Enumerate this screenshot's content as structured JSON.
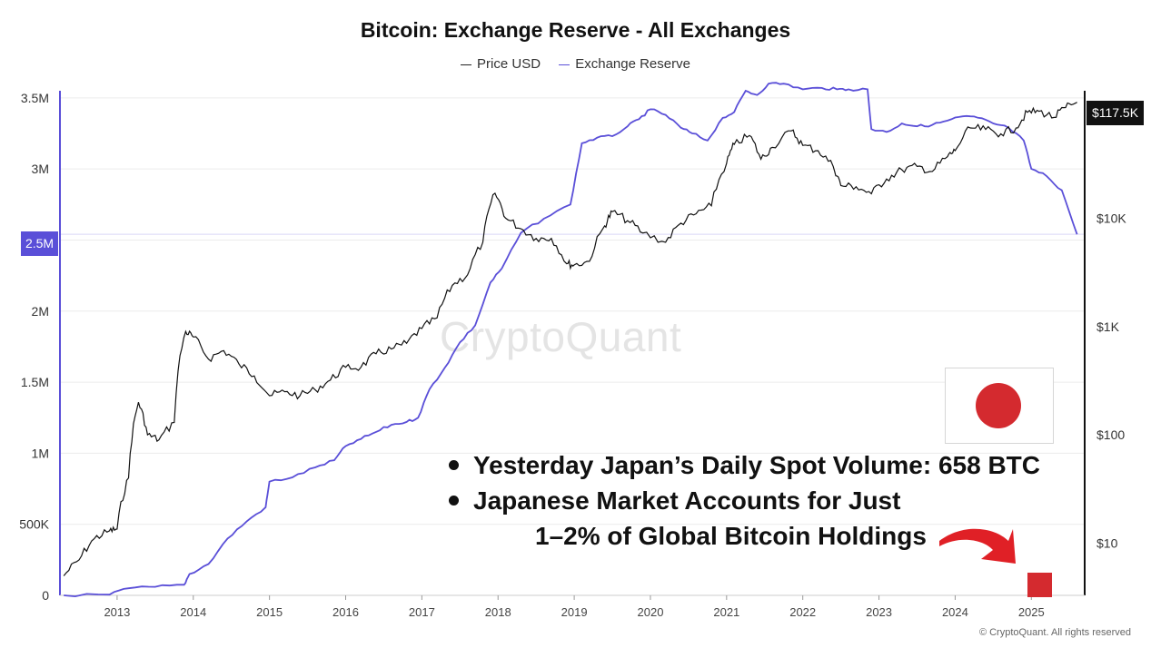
{
  "title": "Bitcoin: Exchange Reserve - All Exchanges",
  "legend": {
    "price_label": "Price USD",
    "reserve_label": "Exchange Reserve"
  },
  "watermark": "CryptoQuant",
  "copyright": "© CryptoQuant. All rights reserved",
  "badges": {
    "reserve_current": "2.5M",
    "price_current": "$117.5K"
  },
  "annotations": {
    "line1": "Yesterday Japan’s Daily Spot Volume: 658 BTC",
    "line2": "Japanese Market Accounts for Just",
    "line3": "1–2% of Global Bitcoin Holdings"
  },
  "colors": {
    "reserve": "#5a4fd8",
    "price": "#111111",
    "flag_red": "#d42a2f",
    "arrow_red": "#e02026"
  },
  "chart_data": {
    "type": "line",
    "title": "Bitcoin: Exchange Reserve - All Exchanges",
    "left_axis": {
      "ticks": [
        0,
        500000,
        1000000,
        1500000,
        2000000,
        2500000,
        3000000,
        3500000
      ],
      "tick_labels": [
        "0",
        "500K",
        "1M",
        "1.5M",
        "2M",
        "2.5M",
        "3M",
        "3.5M"
      ],
      "range": [
        0,
        3550000
      ]
    },
    "right_axis": {
      "scale": "log",
      "ticks": [
        10,
        100,
        1000,
        10000
      ],
      "tick_labels": [
        "$10",
        "$100",
        "$1K",
        "$10K"
      ],
      "range": [
        3.3,
        150000
      ]
    },
    "x_axis": {
      "tick_labels": [
        "2013",
        "2014",
        "2015",
        "2016",
        "2017",
        "2018",
        "2019",
        "2020",
        "2021",
        "2022",
        "2023",
        "2024",
        "2025"
      ],
      "range": [
        2012.25,
        2025.7
      ]
    },
    "grid": {
      "horizontal": true,
      "vertical": false
    },
    "legend_position": "top-center",
    "series": [
      {
        "name": "Price USD",
        "axis": "right",
        "color": "#111111",
        "points": [
          [
            2012.3,
            5.0
          ],
          [
            2012.5,
            7.0
          ],
          [
            2012.7,
            11.0
          ],
          [
            2012.9,
            13.0
          ],
          [
            2013.0,
            13.5
          ],
          [
            2013.15,
            40
          ],
          [
            2013.28,
            200
          ],
          [
            2013.4,
            100
          ],
          [
            2013.55,
            90
          ],
          [
            2013.75,
            130
          ],
          [
            2013.9,
            900
          ],
          [
            2014.0,
            800
          ],
          [
            2014.2,
            500
          ],
          [
            2014.4,
            600
          ],
          [
            2014.6,
            450
          ],
          [
            2014.8,
            350
          ],
          [
            2015.0,
            230
          ],
          [
            2015.2,
            250
          ],
          [
            2015.4,
            230
          ],
          [
            2015.6,
            260
          ],
          [
            2015.8,
            320
          ],
          [
            2016.0,
            420
          ],
          [
            2016.2,
            420
          ],
          [
            2016.4,
            560
          ],
          [
            2016.6,
            620
          ],
          [
            2016.8,
            700
          ],
          [
            2017.0,
            960
          ],
          [
            2017.2,
            1200
          ],
          [
            2017.4,
            2400
          ],
          [
            2017.6,
            3000
          ],
          [
            2017.8,
            6000
          ],
          [
            2017.96,
            17000
          ],
          [
            2018.1,
            10000
          ],
          [
            2018.3,
            8000
          ],
          [
            2018.5,
            6500
          ],
          [
            2018.7,
            6500
          ],
          [
            2018.9,
            3800
          ],
          [
            2019.0,
            3700
          ],
          [
            2019.2,
            4000
          ],
          [
            2019.4,
            8500
          ],
          [
            2019.5,
            11500
          ],
          [
            2019.7,
            9500
          ],
          [
            2019.9,
            7300
          ],
          [
            2020.2,
            6000
          ],
          [
            2020.4,
            9000
          ],
          [
            2020.6,
            11000
          ],
          [
            2020.8,
            13000
          ],
          [
            2021.0,
            32000
          ],
          [
            2021.1,
            48000
          ],
          [
            2021.3,
            58000
          ],
          [
            2021.45,
            35000
          ],
          [
            2021.6,
            45000
          ],
          [
            2021.85,
            64000
          ],
          [
            2022.0,
            47000
          ],
          [
            2022.2,
            42000
          ],
          [
            2022.4,
            30000
          ],
          [
            2022.5,
            20000
          ],
          [
            2022.7,
            19500
          ],
          [
            2022.9,
            16800
          ],
          [
            2023.1,
            23000
          ],
          [
            2023.3,
            28000
          ],
          [
            2023.5,
            30000
          ],
          [
            2023.7,
            27000
          ],
          [
            2023.9,
            37000
          ],
          [
            2024.0,
            42000
          ],
          [
            2024.2,
            68000
          ],
          [
            2024.4,
            66000
          ],
          [
            2024.6,
            60000
          ],
          [
            2024.8,
            68000
          ],
          [
            2024.95,
            95000
          ],
          [
            2025.1,
            97000
          ],
          [
            2025.3,
            85000
          ],
          [
            2025.45,
            105000
          ],
          [
            2025.6,
            117500
          ]
        ]
      },
      {
        "name": "Exchange Reserve",
        "axis": "left",
        "color": "#5a4fd8",
        "points": [
          [
            2012.3,
            0
          ],
          [
            2012.9,
            5000
          ],
          [
            2013.15,
            50000
          ],
          [
            2013.5,
            60000
          ],
          [
            2013.88,
            75000
          ],
          [
            2013.95,
            150000
          ],
          [
            2014.2,
            220000
          ],
          [
            2014.45,
            400000
          ],
          [
            2014.7,
            520000
          ],
          [
            2014.95,
            620000
          ],
          [
            2015.0,
            800000
          ],
          [
            2015.3,
            830000
          ],
          [
            2015.6,
            900000
          ],
          [
            2015.85,
            950000
          ],
          [
            2016.0,
            1050000
          ],
          [
            2016.2,
            1100000
          ],
          [
            2016.4,
            1150000
          ],
          [
            2016.6,
            1200000
          ],
          [
            2016.8,
            1220000
          ],
          [
            2016.95,
            1250000
          ],
          [
            2017.1,
            1450000
          ],
          [
            2017.3,
            1600000
          ],
          [
            2017.5,
            1780000
          ],
          [
            2017.7,
            1900000
          ],
          [
            2017.9,
            2200000
          ],
          [
            2018.05,
            2300000
          ],
          [
            2018.3,
            2550000
          ],
          [
            2018.6,
            2650000
          ],
          [
            2018.95,
            2750000
          ],
          [
            2019.1,
            3180000
          ],
          [
            2019.3,
            3220000
          ],
          [
            2019.5,
            3230000
          ],
          [
            2019.7,
            3300000
          ],
          [
            2019.85,
            3350000
          ],
          [
            2020.0,
            3420000
          ],
          [
            2020.2,
            3380000
          ],
          [
            2020.4,
            3290000
          ],
          [
            2020.55,
            3250000
          ],
          [
            2020.75,
            3200000
          ],
          [
            2020.95,
            3360000
          ],
          [
            2021.1,
            3400000
          ],
          [
            2021.25,
            3550000
          ],
          [
            2021.4,
            3520000
          ],
          [
            2021.55,
            3600000
          ],
          [
            2021.75,
            3600000
          ],
          [
            2022.0,
            3560000
          ],
          [
            2022.25,
            3570000
          ],
          [
            2022.45,
            3560000
          ],
          [
            2022.6,
            3560000
          ],
          [
            2022.85,
            3560000
          ],
          [
            2022.9,
            3280000
          ],
          [
            2023.1,
            3260000
          ],
          [
            2023.3,
            3320000
          ],
          [
            2023.5,
            3300000
          ],
          [
            2023.7,
            3310000
          ],
          [
            2023.9,
            3340000
          ],
          [
            2024.1,
            3370000
          ],
          [
            2024.3,
            3360000
          ],
          [
            2024.5,
            3320000
          ],
          [
            2024.7,
            3290000
          ],
          [
            2024.9,
            3200000
          ],
          [
            2025.0,
            3000000
          ],
          [
            2025.2,
            2950000
          ],
          [
            2025.4,
            2850000
          ],
          [
            2025.6,
            2540000
          ]
        ]
      }
    ]
  }
}
